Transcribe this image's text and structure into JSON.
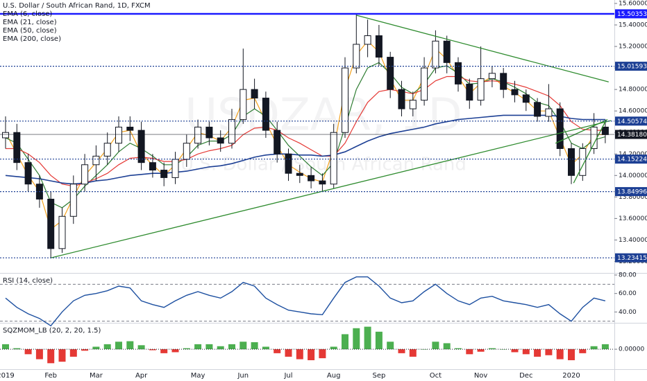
{
  "chart_data": [
    {
      "type": "candlestick",
      "title": "U.S. Dollar / South African Rand, 1D, FXCM",
      "watermark": "USDZAR, 1D",
      "watermark_subtitle": "U.S. Dollar / South African Rand",
      "categories": [
        "2019",
        null,
        null,
        null,
        "Feb",
        null,
        null,
        null,
        "Mar",
        null,
        null,
        null,
        "Apr",
        null,
        null,
        null,
        null,
        "May",
        null,
        null,
        null,
        "Jun",
        null,
        null,
        null,
        "Jul",
        null,
        null,
        null,
        "Aug",
        null,
        null,
        null,
        "Sep",
        null,
        null,
        null,
        null,
        "Oct",
        null,
        null,
        null,
        "Nov",
        null,
        null,
        null,
        "Dec",
        null,
        null,
        null,
        "2020",
        null,
        null,
        null
      ],
      "open": [
        14.35,
        14.4,
        14.12,
        13.92,
        13.78,
        13.32,
        13.62,
        13.92,
        14.1,
        14.18,
        14.3,
        14.45,
        14.42,
        14.12,
        14.05,
        13.98,
        14.15,
        14.3,
        14.45,
        14.35,
        14.3,
        14.52,
        14.8,
        14.72,
        14.42,
        14.2,
        14.02,
        14.0,
        13.95,
        13.92,
        14.4,
        15.0,
        15.22,
        15.3,
        15.1,
        14.8,
        14.62,
        14.7,
        15.0,
        15.25,
        15.05,
        14.85,
        14.7,
        14.9,
        14.95,
        14.8,
        14.75,
        14.68,
        14.55,
        14.62,
        14.25,
        14.0,
        14.25,
        14.45
      ],
      "high": [
        14.55,
        14.48,
        14.2,
        14.0,
        13.85,
        13.7,
        14.0,
        14.2,
        14.28,
        14.4,
        14.55,
        14.55,
        14.5,
        14.2,
        14.12,
        14.22,
        14.38,
        14.52,
        14.5,
        14.42,
        14.62,
        15.18,
        14.9,
        14.78,
        14.5,
        14.25,
        14.1,
        14.08,
        14.02,
        14.48,
        15.1,
        15.5,
        15.45,
        15.4,
        15.15,
        14.88,
        14.78,
        15.1,
        15.35,
        15.3,
        15.1,
        14.9,
        15.2,
        15.02,
        15.0,
        14.88,
        14.8,
        14.72,
        14.85,
        14.68,
        14.3,
        14.3,
        14.58,
        14.52
      ],
      "low": [
        14.25,
        14.05,
        13.85,
        13.7,
        13.23,
        13.28,
        13.55,
        13.85,
        13.95,
        14.1,
        14.22,
        14.32,
        14.05,
        13.98,
        13.9,
        13.92,
        14.08,
        14.25,
        14.28,
        14.22,
        14.25,
        14.48,
        14.62,
        14.35,
        14.12,
        13.95,
        13.93,
        13.88,
        13.85,
        13.88,
        14.35,
        14.95,
        15.1,
        15.02,
        14.72,
        14.55,
        14.55,
        14.65,
        14.95,
        14.95,
        14.78,
        14.62,
        14.65,
        14.82,
        14.72,
        14.68,
        14.6,
        14.5,
        14.5,
        14.18,
        13.92,
        13.95,
        14.2,
        14.3
      ],
      "close": [
        14.4,
        14.12,
        13.92,
        13.78,
        13.32,
        13.62,
        13.92,
        14.1,
        14.18,
        14.3,
        14.45,
        14.42,
        14.12,
        14.05,
        13.98,
        14.15,
        14.3,
        14.45,
        14.35,
        14.3,
        14.52,
        14.8,
        14.72,
        14.42,
        14.2,
        14.02,
        14.0,
        13.95,
        13.92,
        14.4,
        15.0,
        15.22,
        15.3,
        15.1,
        14.8,
        14.62,
        14.7,
        15.0,
        15.25,
        15.05,
        14.85,
        14.7,
        14.9,
        14.95,
        14.8,
        14.75,
        14.68,
        14.55,
        14.62,
        14.25,
        14.0,
        14.25,
        14.45,
        14.38
      ],
      "series": [
        {
          "name": "EMA (6, close)",
          "color": "#f4a21d",
          "values": [
            14.4,
            14.2,
            14.0,
            13.85,
            13.5,
            13.58,
            13.8,
            14.0,
            14.12,
            14.25,
            14.4,
            14.42,
            14.2,
            14.1,
            14.0,
            14.1,
            14.25,
            14.4,
            14.37,
            14.32,
            14.45,
            14.7,
            14.72,
            14.5,
            14.28,
            14.1,
            14.03,
            13.97,
            13.94,
            14.25,
            14.8,
            15.12,
            15.25,
            15.15,
            14.9,
            14.7,
            14.7,
            14.92,
            15.18,
            15.08,
            14.92,
            14.76,
            14.86,
            14.92,
            14.83,
            14.77,
            14.7,
            14.6,
            14.6,
            14.35,
            14.1,
            14.2,
            14.38,
            14.38
          ]
        },
        {
          "name": "EMA (21, close)",
          "color": "#2e7d32",
          "values": [
            14.35,
            14.3,
            14.15,
            14.0,
            13.75,
            13.7,
            13.78,
            13.9,
            14.0,
            14.1,
            14.22,
            14.3,
            14.25,
            14.18,
            14.1,
            14.1,
            14.17,
            14.28,
            14.32,
            14.32,
            14.38,
            14.55,
            14.62,
            14.55,
            14.42,
            14.28,
            14.18,
            14.08,
            14.0,
            14.12,
            14.45,
            14.8,
            15.0,
            15.05,
            14.95,
            14.82,
            14.76,
            14.85,
            15.0,
            15.02,
            14.95,
            14.85,
            14.86,
            14.9,
            14.87,
            14.82,
            14.76,
            14.68,
            14.65,
            14.5,
            14.3,
            14.25,
            14.33,
            14.36
          ]
        },
        {
          "name": "EMA (50, close)",
          "color": "#e53935",
          "values": [
            14.25,
            14.25,
            14.2,
            14.12,
            14.0,
            13.92,
            13.9,
            13.93,
            13.97,
            14.02,
            14.1,
            14.16,
            14.17,
            14.16,
            14.13,
            14.13,
            14.15,
            14.2,
            14.23,
            14.25,
            14.28,
            14.38,
            14.44,
            14.45,
            14.42,
            14.35,
            14.3,
            14.24,
            14.18,
            14.18,
            14.3,
            14.5,
            14.68,
            14.78,
            14.8,
            14.78,
            14.76,
            14.8,
            14.88,
            14.92,
            14.92,
            14.88,
            14.87,
            14.88,
            14.87,
            14.85,
            14.82,
            14.78,
            14.74,
            14.65,
            14.5,
            14.43,
            14.42,
            14.42
          ]
        },
        {
          "name": "EMA (200, close)",
          "color": "#1c3f94",
          "values": [
            14.0,
            13.99,
            13.98,
            13.97,
            13.95,
            13.93,
            13.92,
            13.93,
            13.95,
            13.96,
            13.98,
            14.0,
            14.01,
            14.02,
            14.02,
            14.03,
            14.04,
            14.06,
            14.08,
            14.09,
            14.11,
            14.14,
            14.17,
            14.19,
            14.2,
            14.2,
            14.19,
            14.19,
            14.18,
            14.19,
            14.22,
            14.27,
            14.32,
            14.36,
            14.39,
            14.41,
            14.43,
            14.45,
            14.48,
            14.5,
            14.52,
            14.53,
            14.54,
            14.55,
            14.56,
            14.56,
            14.56,
            14.56,
            14.56,
            14.55,
            14.53,
            14.52,
            14.52,
            14.52
          ]
        }
      ],
      "ylim": [
        13.1,
        15.632
      ],
      "yticks": [
        {
          "value": 13.2,
          "label": "13.20000"
        },
        {
          "value": 13.4,
          "label": "13.40000"
        },
        {
          "value": 13.6,
          "label": "13.60000"
        },
        {
          "value": 13.8,
          "label": "13.80000"
        },
        {
          "value": 14.0,
          "label": "14.00000"
        },
        {
          "value": 14.2,
          "label": "14.20000"
        },
        {
          "value": 14.4,
          "label": "14.40000"
        },
        {
          "value": 14.6,
          "label": "14.60000"
        },
        {
          "value": 14.8,
          "label": "14.80000"
        },
        {
          "value": 15.0,
          "label": "15.00000"
        },
        {
          "value": 15.2,
          "label": "15.20000"
        },
        {
          "value": 15.4,
          "label": "15.40000"
        },
        {
          "value": 15.6,
          "label": "15.60000"
        }
      ],
      "levels": {
        "values": [
          15.50353,
          15.01593,
          14.50574,
          14.3818,
          14.15224,
          13.84996,
          13.23415
        ],
        "value_labels": [
          "15.50353",
          "15.01593",
          "14.50574",
          "14.38180",
          "14.15224",
          "13.84996",
          "13.23415"
        ],
        "colors": [
          "#1a1aff",
          "#1c3f94",
          "#1c3f94",
          "#131722",
          "#1c3f94",
          "#1c3f94",
          "#1c3f94"
        ]
      },
      "trendline_color": "#2e8b2e",
      "trendlines": [
        {
          "x": [
            4,
            53.5
          ],
          "y": [
            13.234,
            14.51
          ]
        },
        {
          "x": [
            31,
            53.3
          ],
          "y": [
            15.49,
            14.87
          ]
        },
        {
          "x": [
            50.2,
            53
          ],
          "y": [
            13.93,
            14.5
          ]
        },
        {
          "x": [
            48.6,
            53.2
          ],
          "y": [
            14.3,
            14.52
          ]
        }
      ]
    },
    {
      "type": "line",
      "title": "RSI (14, close)",
      "color": "#1c4fa0",
      "values": [
        55,
        45,
        38,
        33,
        25,
        40,
        52,
        58,
        60,
        63,
        68,
        66,
        52,
        48,
        45,
        52,
        58,
        62,
        58,
        55,
        62,
        72,
        68,
        55,
        48,
        42,
        40,
        38,
        37,
        55,
        72,
        78,
        78,
        68,
        55,
        50,
        52,
        62,
        70,
        60,
        52,
        48,
        55,
        57,
        52,
        50,
        48,
        45,
        48,
        38,
        30,
        45,
        55,
        52
      ],
      "bands": [
        30,
        70
      ],
      "ylim": [
        29,
        81.5
      ],
      "yticks": [
        {
          "value": 40,
          "label": "40.00"
        },
        {
          "value": 60,
          "label": "60.00"
        },
        {
          "value": 80,
          "label": "80.00"
        }
      ]
    },
    {
      "type": "bar",
      "title": "SQZMOM_LB (20, 2, 20, 1.5)",
      "positive_color": "#4caf50",
      "negative_color": "#e53935",
      "values": [
        0.1,
        0.02,
        -0.1,
        -0.2,
        -0.28,
        -0.25,
        -0.15,
        -0.03,
        0.05,
        0.1,
        0.15,
        0.16,
        0.08,
        -0.02,
        -0.08,
        -0.06,
        0.02,
        0.1,
        0.1,
        0.06,
        0.1,
        0.15,
        0.14,
        0.05,
        -0.08,
        -0.15,
        -0.2,
        -0.22,
        -0.18,
        0.05,
        0.3,
        0.42,
        0.45,
        0.35,
        0.15,
        -0.08,
        -0.15,
        0.0,
        0.15,
        0.12,
        0.02,
        -0.1,
        -0.05,
        0.02,
        0.0,
        -0.06,
        -0.1,
        -0.15,
        -0.12,
        -0.2,
        -0.22,
        -0.08,
        0.06,
        0.1
      ],
      "ylim": [
        -0.4,
        0.5
      ],
      "yticks": [
        {
          "value": 0,
          "label": "0.00000"
        }
      ]
    }
  ]
}
